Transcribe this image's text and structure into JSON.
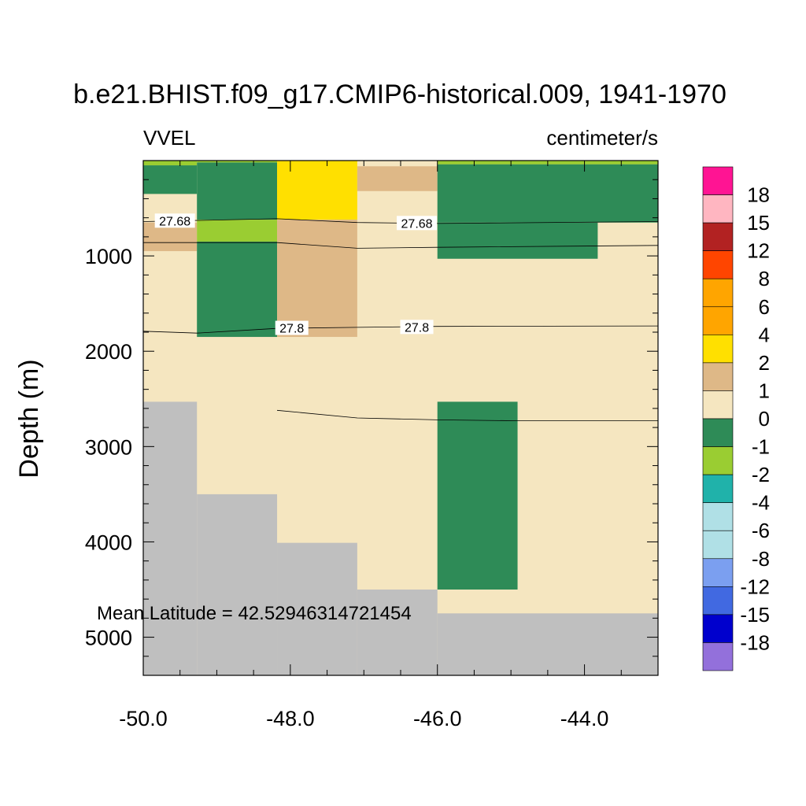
{
  "chart_data": {
    "type": "heatmap",
    "title": "b.e21.BHIST.f09_g17.CMIP6-historical.009, 1941-1970",
    "left_label": "VVEL",
    "right_label": "centimeter/s",
    "xlabel": "",
    "ylabel": "Depth (m)",
    "annotation": "Mean Latitude = 42.52946314721454",
    "xlim": [
      -50.0,
      -43.0
    ],
    "ylim": [
      0,
      5400
    ],
    "y_inverted": true,
    "x_ticks": [
      -50.0,
      -48.0,
      -46.0,
      -44.0
    ],
    "x_tick_labels": [
      "-50.0",
      "-48.0",
      "-46.0",
      "-44.0"
    ],
    "y_ticks": [
      1000,
      2000,
      3000,
      4000,
      5000
    ],
    "y_tick_labels": [
      "1000",
      "2000",
      "3000",
      "4000",
      "5000"
    ],
    "levels": [
      {
        "label": "18",
        "color": "#ff1493"
      },
      {
        "label": "15",
        "color": "#ffb6c1"
      },
      {
        "label": "12",
        "color": "#b22222"
      },
      {
        "label": "8",
        "color": "#ff4500"
      },
      {
        "label": "6",
        "color": "#ffa500"
      },
      {
        "label": "4",
        "color": "#ffa500"
      },
      {
        "label": "2",
        "color": "#ffe000"
      },
      {
        "label": "1",
        "color": "#deb887"
      },
      {
        "label": "0",
        "color": "#f5e6c0"
      },
      {
        "label": "-1",
        "color": "#2e8b57"
      },
      {
        "label": "-2",
        "color": "#9acd32"
      },
      {
        "label": "-4",
        "color": "#20b2aa"
      },
      {
        "label": "-6",
        "color": "#b0e0e6"
      },
      {
        "label": "-8",
        "color": "#b0e0e6"
      },
      {
        "label": "-12",
        "color": "#7b9ff0"
      },
      {
        "label": "-15",
        "color": "#4169e1"
      },
      {
        "label": "-18",
        "color": "#0000cd"
      },
      {
        "label": "",
        "color": "#9370db"
      }
    ],
    "background_color": "#f5e6c0",
    "land_color": "#bfbfbf",
    "cells": [
      {
        "x": [
          -50.0,
          -49.27
        ],
        "y": [
          0,
          50
        ],
        "color": "#9acd32"
      },
      {
        "x": [
          -50.0,
          -49.27
        ],
        "y": [
          50,
          350
        ],
        "color": "#2e8b57"
      },
      {
        "x": [
          -50.0,
          -49.27
        ],
        "y": [
          650,
          950
        ],
        "color": "#deb887"
      },
      {
        "x": [
          -49.27,
          -48.18
        ],
        "y": [
          0,
          20
        ],
        "color": "#9acd32"
      },
      {
        "x": [
          -49.27,
          -48.18
        ],
        "y": [
          20,
          620
        ],
        "color": "#2e8b57"
      },
      {
        "x": [
          -49.27,
          -48.18
        ],
        "y": [
          620,
          850
        ],
        "color": "#9acd32"
      },
      {
        "x": [
          -49.27,
          -48.18
        ],
        "y": [
          850,
          1850
        ],
        "color": "#2e8b57"
      },
      {
        "x": [
          -48.18,
          -47.09
        ],
        "y": [
          0,
          620
        ],
        "color": "#ffe000"
      },
      {
        "x": [
          -48.18,
          -47.09
        ],
        "y": [
          620,
          1850
        ],
        "color": "#deb887"
      },
      {
        "x": [
          -47.09,
          -46.0
        ],
        "y": [
          60,
          320
        ],
        "color": "#deb887"
      },
      {
        "x": [
          -46.0,
          -43.0
        ],
        "y": [
          0,
          40
        ],
        "color": "#9acd32"
      },
      {
        "x": [
          -46.0,
          -43.0
        ],
        "y": [
          40,
          650
        ],
        "color": "#2e8b57"
      },
      {
        "x": [
          -46.0,
          -43.82
        ],
        "y": [
          650,
          1030
        ],
        "color": "#2e8b57"
      },
      {
        "x": [
          -46.0,
          -44.91
        ],
        "y": [
          2530,
          4500
        ],
        "color": "#2e8b57"
      },
      {
        "x": [
          -50.0,
          -49.27
        ],
        "y": [
          2530,
          5400
        ],
        "color": "#bfbfbf"
      },
      {
        "x": [
          -49.27,
          -48.18
        ],
        "y": [
          3500,
          5400
        ],
        "color": "#bfbfbf"
      },
      {
        "x": [
          -48.18,
          -47.09
        ],
        "y": [
          4010,
          5400
        ],
        "color": "#bfbfbf"
      },
      {
        "x": [
          -47.09,
          -46.0
        ],
        "y": [
          4500,
          5400
        ],
        "color": "#bfbfbf"
      },
      {
        "x": [
          -46.0,
          -43.0
        ],
        "y": [
          4750,
          5400
        ],
        "color": "#bfbfbf"
      }
    ],
    "contours": [
      {
        "label": "27.68",
        "points": [
          [
            -50.0,
            640
          ],
          [
            -48.18,
            610
          ],
          [
            -47.09,
            650
          ],
          [
            -46.0,
            660
          ],
          [
            -43.0,
            640
          ]
        ],
        "label_positions": [
          [
            -49.57,
            630
          ],
          [
            -46.28,
            655
          ]
        ]
      },
      {
        "label": "",
        "points": [
          [
            -50.0,
            860
          ],
          [
            -48.18,
            860
          ],
          [
            -47.09,
            920
          ],
          [
            -46.0,
            910
          ],
          [
            -43.0,
            890
          ]
        ],
        "label_positions": []
      },
      {
        "label": "27.8",
        "points": [
          [
            -50.0,
            1790
          ],
          [
            -49.27,
            1810
          ],
          [
            -48.18,
            1760
          ],
          [
            -47.09,
            1750
          ],
          [
            -46.0,
            1740
          ],
          [
            -43.0,
            1735
          ]
        ],
        "label_positions": [
          [
            -47.98,
            1755
          ],
          [
            -46.28,
            1745
          ]
        ]
      },
      {
        "label": "",
        "points": [
          [
            -48.18,
            2620
          ],
          [
            -47.09,
            2700
          ],
          [
            -46.0,
            2720
          ],
          [
            -44.91,
            2730
          ],
          [
            -43.0,
            2730
          ]
        ],
        "label_positions": []
      }
    ]
  }
}
